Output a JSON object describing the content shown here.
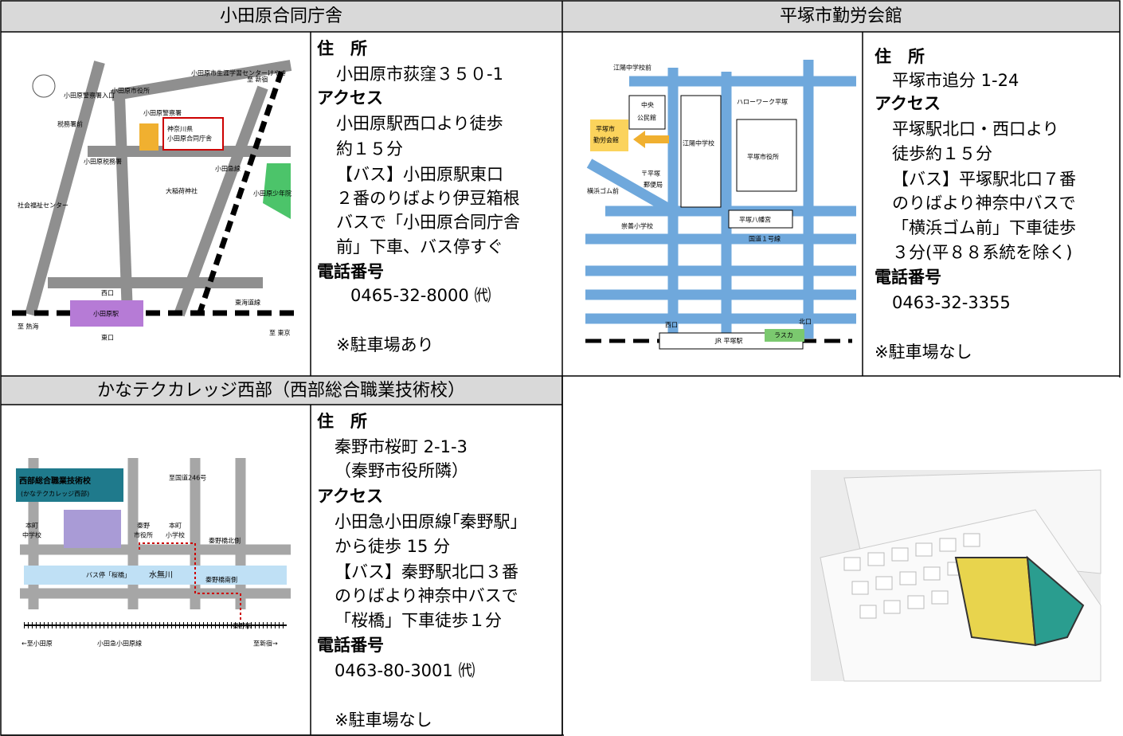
{
  "sections": [
    {
      "title": "小田原合同庁舎",
      "address_label": "住　所",
      "address": [
        "小田原市荻窪３５０-1"
      ],
      "access_label": "アクセス",
      "access": [
        "小田原駅西口より徒歩",
        "約１５分",
        "【バス】小田原駅東口",
        "２番のりばより伊豆箱根",
        "バスで「小田原合同庁舎",
        "前」下車、バス停すぐ"
      ],
      "phone_label": "電話番号",
      "phone": "0465-32-8000 ㈹",
      "note": "※駐車場あり",
      "map_labels": [
        "小田原市生涯学習センターけやき",
        "至 新宿",
        "小田原警察署入口",
        "小田原市役所",
        "小田原警察署",
        "税務署前",
        "神奈川県",
        "小田原合同庁舎",
        "小田原税務署",
        "小田急線",
        "大稲荷神社",
        "小田原少年院",
        "社会福祉センター",
        "西口",
        "小田原駅",
        "東口",
        "東海道線",
        "至 熱海",
        "至 東京"
      ]
    },
    {
      "title": "平塚市勤労会館",
      "address_label": "住　所",
      "address": [
        "平塚市追分 1-24"
      ],
      "access_label": "アクセス",
      "access": [
        "平塚駅北口・西口より",
        "徒歩約１５分",
        "【バス】平塚駅北口７番",
        "のりばより神奈中バスで",
        "「横浜ゴム前」下車徒歩",
        "３分(平８８系統を除く)"
      ],
      "phone_label": "電話番号",
      "phone": "0463-32-3355",
      "note": "※駐車場なし",
      "map_labels": [
        "江陽中学校前",
        "中央",
        "公民館",
        "ハローワーク平塚",
        "平塚市",
        "勤労会館",
        "江陽中学校",
        "平塚市役所",
        "〒平塚",
        "郵便局",
        "横浜ゴム前",
        "平塚八幡宮",
        "崇善小学校",
        "国道１号線",
        "西口",
        "北口",
        "JR 平塚駅",
        "ラスカ"
      ]
    },
    {
      "title": "かなテクカレッジ西部（西部総合職業技術校）",
      "address_label": "住　所",
      "address": [
        "秦野市桜町 2-1-3",
        "（秦野市役所隣）"
      ],
      "access_label": "アクセス",
      "access": [
        "小田急小田原線｢秦野駅｣",
        "から徒歩 15 分",
        "【バス】秦野駅北口３番",
        "のりばより神奈中バスで",
        "「桜橋」下車徒歩１分"
      ],
      "phone_label": "電話番号",
      "phone": "0463-80-3001 ㈹",
      "note": "※駐車場なし",
      "map_labels": [
        "西部総合職業技術校",
        "(かなテクカレッジ西部)",
        "至国道246号",
        "本町",
        "中学校",
        "秦野",
        "市役所",
        "本町",
        "小学校",
        "秦野橋北側",
        "バス停「桜橋」",
        "水無川",
        "秦野橋南側",
        "秦野駅",
        "←至小田原",
        "小田急小田原線",
        "至新宿→"
      ]
    }
  ]
}
